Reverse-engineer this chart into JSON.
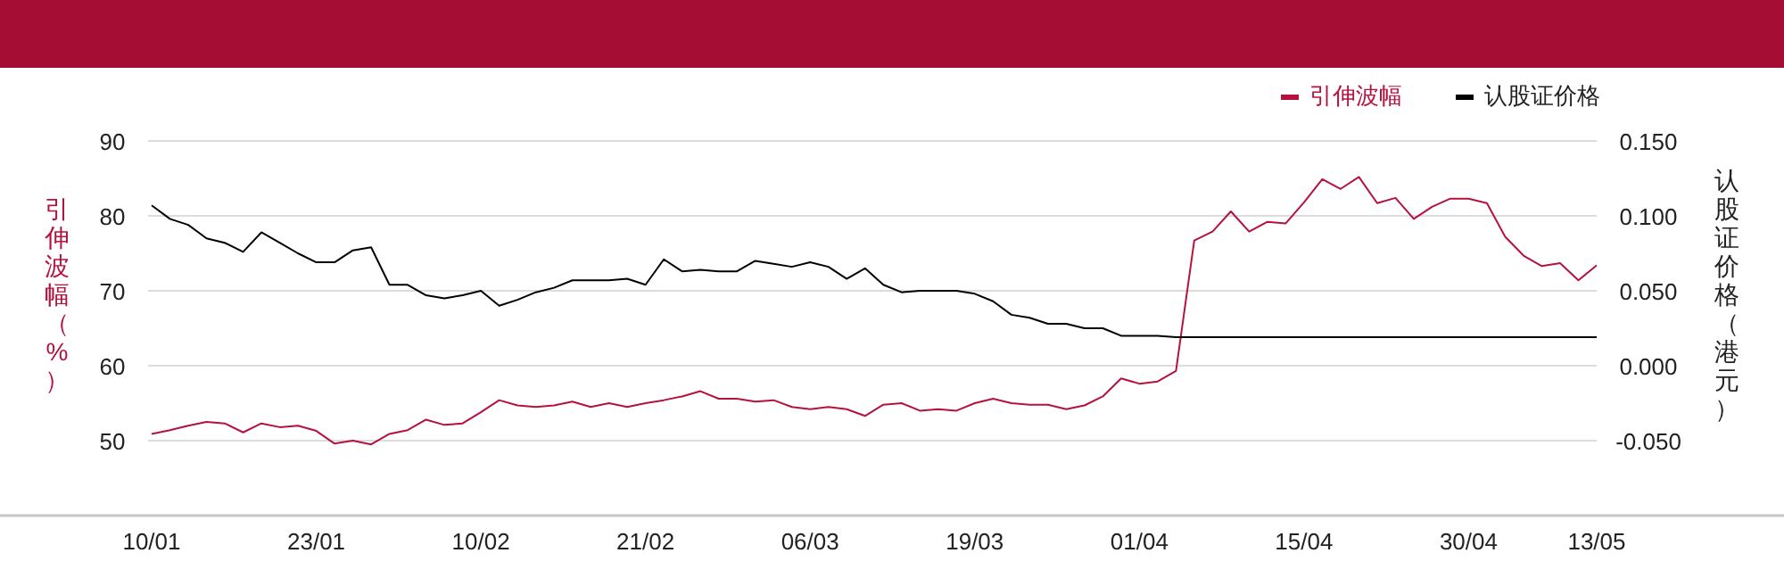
{
  "chart_data": {
    "type": "line",
    "categories": [
      "10/01",
      null,
      null,
      null,
      null,
      null,
      null,
      null,
      null,
      "23/01",
      null,
      null,
      null,
      null,
      null,
      null,
      null,
      null,
      "10/02",
      null,
      null,
      null,
      null,
      null,
      null,
      null,
      null,
      "21/02",
      null,
      null,
      null,
      null,
      null,
      null,
      null,
      null,
      "06/03",
      null,
      null,
      null,
      null,
      null,
      null,
      null,
      null,
      "19/03",
      null,
      null,
      null,
      null,
      null,
      null,
      null,
      null,
      "01/04",
      null,
      null,
      null,
      null,
      null,
      null,
      null,
      null,
      "15/04",
      null,
      null,
      null,
      null,
      null,
      null,
      null,
      null,
      "30/04",
      null,
      null,
      null,
      null,
      null,
      null,
      "13/05"
    ],
    "series": [
      {
        "name": "引伸波幅",
        "color": "#b5123f",
        "values": [
          50.9,
          51.4,
          52.0,
          52.5,
          52.3,
          51.1,
          52.3,
          51.8,
          52.0,
          51.3,
          49.6,
          50.0,
          49.5,
          50.9,
          51.4,
          52.8,
          52.1,
          52.3,
          53.8,
          55.4,
          54.7,
          54.5,
          54.7,
          55.2,
          54.5,
          55.0,
          54.5,
          55.0,
          55.4,
          55.9,
          56.6,
          55.6,
          55.6,
          55.2,
          55.4,
          54.5,
          54.2,
          54.5,
          54.2,
          53.3,
          54.8,
          55.0,
          54.0,
          54.2,
          54.0,
          55.0,
          55.6,
          55.0,
          54.8,
          54.8,
          54.2,
          54.7,
          55.9,
          58.3,
          57.6,
          57.9,
          59.3,
          76.7,
          77.9,
          80.6,
          77.9,
          79.2,
          79.0,
          81.8,
          84.9,
          83.6,
          85.2,
          81.7,
          82.4,
          79.6,
          81.2,
          82.3,
          82.3,
          81.7,
          77.2,
          74.7,
          73.3,
          73.7,
          71.4,
          73.4
        ]
      },
      {
        "name": "认股证价格",
        "color": "#000000",
        "axis": "y2",
        "values": [
          0.107,
          0.098,
          0.094,
          0.085,
          0.082,
          0.076,
          0.089,
          0.082,
          0.075,
          0.069,
          0.069,
          0.077,
          0.079,
          0.054,
          0.054,
          0.047,
          0.045,
          0.047,
          0.05,
          0.04,
          0.044,
          0.049,
          0.052,
          0.057,
          0.057,
          0.057,
          0.058,
          0.054,
          0.071,
          0.063,
          0.064,
          0.063,
          0.063,
          0.07,
          0.068,
          0.066,
          0.069,
          0.066,
          0.058,
          0.065,
          0.054,
          0.049,
          0.05,
          0.05,
          0.05,
          0.048,
          0.043,
          0.034,
          0.032,
          0.028,
          0.028,
          0.025,
          0.025,
          0.02,
          0.02,
          0.02,
          0.019,
          0.019,
          0.019,
          0.019,
          0.019,
          0.019,
          0.019,
          0.019,
          0.019,
          0.019,
          0.019,
          0.019,
          0.019,
          0.019,
          0.019,
          0.019,
          0.019,
          0.019,
          0.019,
          0.019,
          0.019,
          0.019,
          0.019,
          0.019
        ]
      }
    ],
    "ylim": [
      40,
      90
    ],
    "yticks": [
      50,
      60,
      70,
      80,
      90
    ],
    "y2lim": [
      -0.1,
      0.15
    ],
    "y2ticks": [
      {
        "value": -0.05,
        "label": "-0.050"
      },
      {
        "value": 0,
        "label": "0.000"
      },
      {
        "value": 0.05,
        "label": "0.050"
      },
      {
        "value": 0.1,
        "label": "0.100"
      },
      {
        "value": 0.15,
        "label": "0.150"
      }
    ],
    "ylabel": "引伸波幅（%）",
    "y2label": "认股证价格（港元）",
    "grid": "y",
    "legend": "top right"
  }
}
